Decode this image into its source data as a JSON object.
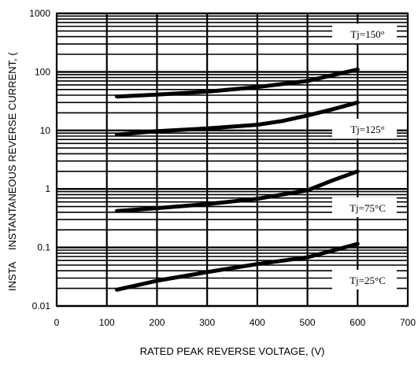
{
  "chart_data": {
    "type": "line",
    "title": "",
    "xlabel": "RATED PEAK REVERSE VOLTAGE, (V)",
    "ylabel_prefix": "INSTA",
    "ylabel": "INSTANTANEOUS REVERSE CURRENT, (",
    "xlim": [
      0,
      700
    ],
    "ylim": [
      0.01,
      1000
    ],
    "yscale": "log",
    "grid": true,
    "x_ticks": [
      0,
      100,
      200,
      300,
      400,
      500,
      600,
      700
    ],
    "y_ticks": [
      0.01,
      0.1,
      1,
      10,
      100,
      1000
    ],
    "x_tick_labels": [
      "0",
      "100",
      "200",
      "300",
      "400",
      "500",
      "600",
      "700"
    ],
    "y_tick_labels": [
      "0.01",
      "0.1",
      "1",
      "10",
      "100",
      "1000"
    ],
    "series": [
      {
        "name": "Tj=150°",
        "x": [
          120,
          200,
          300,
          400,
          500,
          600
        ],
        "y": [
          38,
          41,
          46,
          55,
          70,
          110
        ]
      },
      {
        "name": "Tj=125°",
        "x": [
          120,
          200,
          300,
          400,
          450,
          500,
          550,
          600
        ],
        "y": [
          8.5,
          9.7,
          10.8,
          12.5,
          14.5,
          18,
          23,
          30
        ]
      },
      {
        "name": "Tj=75°C",
        "x": [
          120,
          200,
          300,
          400,
          500,
          550,
          600
        ],
        "y": [
          0.42,
          0.47,
          0.55,
          0.68,
          0.95,
          1.4,
          2.0
        ]
      },
      {
        "name": "Tj=25°C",
        "x": [
          120,
          200,
          300,
          400,
          500,
          550,
          600
        ],
        "y": [
          0.019,
          0.027,
          0.038,
          0.052,
          0.068,
          0.088,
          0.115
        ]
      }
    ]
  }
}
